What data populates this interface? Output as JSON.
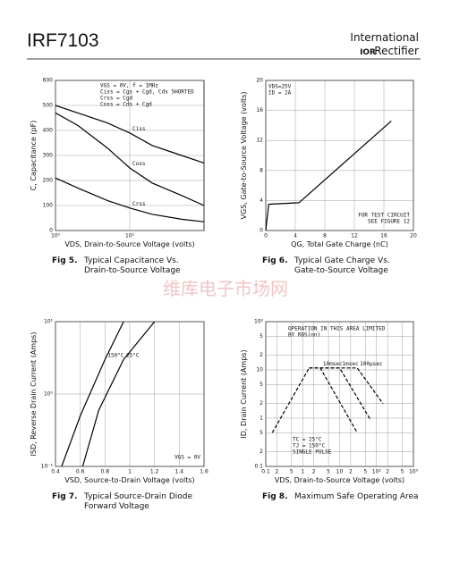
{
  "header": {
    "title": "IRF7103",
    "brand_top": "International",
    "brand_logo": "IOR",
    "brand_bottom": "Rectifier"
  },
  "watermark": "维库电子市场网",
  "chart_data": [
    {
      "type": "line",
      "fig_label": "Fig 5.",
      "caption": [
        "Typical Capacitance Vs.",
        "Drain-to-Source Voltage"
      ],
      "xlabel": "VDS, Drain-to-Source Voltage (volts)",
      "ylabel": "C,  Capacitance (pF)",
      "xscale": "log",
      "xlim": [
        1,
        100
      ],
      "xticks": [
        {
          "value": 1,
          "label": "10⁰"
        },
        {
          "value": 10,
          "label": "10¹"
        }
      ],
      "ylim": [
        0,
        600
      ],
      "yticks": [
        0,
        100,
        200,
        300,
        400,
        500,
        600
      ],
      "grid": true,
      "annotations": [
        [
          "VGS = 0V,  f = 1MHz",
          "Ciss = Cgs + Cgd,  Cds SHORTED",
          "Crss = Cgd",
          "Coss = Cds + Cgd"
        ]
      ],
      "series": [
        {
          "name": "Ciss",
          "color": "#000",
          "x": [
            1,
            2,
            5,
            10,
            20,
            50,
            100
          ],
          "values": [
            500,
            470,
            430,
            390,
            340,
            300,
            270
          ]
        },
        {
          "name": "Coss",
          "color": "#000",
          "x": [
            1,
            2,
            5,
            10,
            20,
            50,
            100
          ],
          "values": [
            470,
            420,
            330,
            250,
            190,
            140,
            100
          ]
        },
        {
          "name": "Crss",
          "color": "#000",
          "x": [
            1,
            2,
            5,
            10,
            20,
            50,
            100
          ],
          "values": [
            210,
            170,
            120,
            90,
            65,
            45,
            35
          ]
        }
      ]
    },
    {
      "type": "line",
      "fig_label": "Fig 6.",
      "caption": [
        "Typical Gate Charge Vs.",
        "Gate-to-Source Voltage"
      ],
      "xlabel": "QG, Total Gate Charge (nC)",
      "ylabel": "VGS, Gate-to-Source Voltage (volts)",
      "xlim": [
        0,
        20
      ],
      "xticks": [
        0,
        4,
        8,
        12,
        16,
        20
      ],
      "ylim": [
        0,
        20
      ],
      "yticks": [
        0,
        4,
        8,
        12,
        16,
        20
      ],
      "grid": true,
      "annotations": [
        [
          "VDS=25V",
          "ID = 2A"
        ],
        [
          "FOR TEST CIRCUIT",
          "SEE FIGURE 12"
        ]
      ],
      "series": [
        {
          "color": "#000",
          "x": [
            0,
            0.4,
            4.5,
            17
          ],
          "values": [
            0,
            3.5,
            3.7,
            14.6
          ]
        }
      ]
    },
    {
      "type": "line",
      "fig_label": "Fig 7.",
      "caption": [
        "Typical Source-Drain Diode",
        "Forward Voltage"
      ],
      "xlabel": "VSD, Source-to-Drain Voltage (volts)",
      "ylabel": "ISD, Reverse Drain Current (Amps)",
      "xlim": [
        0.4,
        1.6
      ],
      "xticks": [
        0.4,
        0.6,
        0.8,
        1.0,
        1.2,
        1.4,
        1.6
      ],
      "yscale": "log",
      "ylim": [
        0.1,
        10
      ],
      "yticks": [
        {
          "value": 0.1,
          "label": "10⁻¹"
        },
        {
          "value": 1,
          "label": "10⁰"
        },
        {
          "value": 10,
          "label": "10¹"
        }
      ],
      "grid": true,
      "annotations": [
        [
          "VGS = 0V"
        ]
      ],
      "series": [
        {
          "name": "150°C",
          "color": "#000",
          "x": [
            0.45,
            0.6,
            0.8,
            0.95
          ],
          "values": [
            0.1,
            0.5,
            3,
            10
          ]
        },
        {
          "name": "25°C",
          "color": "#000",
          "x": [
            0.62,
            0.75,
            0.95,
            1.2
          ],
          "values": [
            0.1,
            0.6,
            3,
            10
          ]
        }
      ]
    },
    {
      "type": "line",
      "fig_label": "Fig 8.",
      "caption": [
        "Maximum Safe Operating Area"
      ],
      "xlabel": "VDS, Drain-to-Source Voltage (volts)",
      "ylabel": "ID, Drain Current (Amps)",
      "xscale": "log",
      "xlim": [
        0.1,
        1000
      ],
      "xticks": [
        0.1,
        {
          "value": 0.2,
          "label": "2"
        },
        {
          "value": 0.5,
          "label": "5"
        },
        1,
        2,
        5,
        10,
        {
          "value": 20,
          "label": "2"
        },
        {
          "value": 50,
          "label": "5"
        },
        {
          "value": 100,
          "label": "10²"
        },
        {
          "value": 200,
          "label": "2"
        },
        {
          "value": 500,
          "label": "5"
        },
        {
          "value": 1000,
          "label": "10³"
        }
      ],
      "yscale": "log",
      "ylim": [
        0.1,
        100
      ],
      "yticks": [
        0.1,
        {
          "value": 0.2,
          "label": "2"
        },
        {
          "value": 0.5,
          "label": "5"
        },
        1,
        2,
        5,
        10,
        {
          "value": 20,
          "label": "2"
        },
        {
          "value": 50,
          "label": "5"
        },
        {
          "value": 100,
          "label": "10²"
        }
      ],
      "grid": true,
      "annotations": [
        [
          "OPERATION IN THIS AREA LIMITED",
          "BY RDS(on)"
        ],
        [
          "TC = 25°C",
          "TJ = 150°C",
          "SINGLE PULSE"
        ]
      ],
      "series": [
        {
          "color": "#000",
          "dash": true,
          "x": [
            0.15,
            1.5
          ],
          "values": [
            0.5,
            11
          ]
        },
        {
          "name": "100µsec",
          "color": "#000",
          "dash": true,
          "x": [
            1.5,
            30,
            150
          ],
          "values": [
            11,
            11,
            2
          ]
        },
        {
          "name": "1msec",
          "color": "#000",
          "dash": true,
          "x": [
            1.5,
            10,
            70
          ],
          "values": [
            11,
            11,
            0.9
          ]
        },
        {
          "name": "10msec",
          "color": "#000",
          "dash": true,
          "x": [
            1.5,
            3,
            30
          ],
          "values": [
            11,
            11,
            0.5
          ]
        }
      ]
    }
  ]
}
